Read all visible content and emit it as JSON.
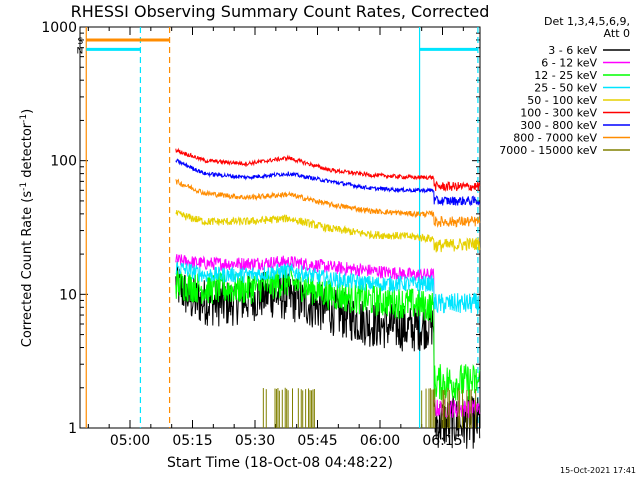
{
  "chart_data": {
    "type": "line",
    "title": "RHESSI Observing Summary Count Rates, Corrected",
    "xlabel": "Start Time (18-Oct-08 04:48:22)",
    "ylabel_main": "Corrected Count Rate (s",
    "ylabel_exp1": "-1",
    "ylabel_mid": " detector",
    "ylabel_exp2": "-1",
    "ylabel_end": ")",
    "yscale": "log",
    "ylim": [
      1,
      1000
    ],
    "xlim_minutes_after_0448": [
      0,
      96
    ],
    "y_ticks": [
      "1",
      "10",
      "100",
      "1000"
    ],
    "x_ticks": [
      {
        "label": "05:00",
        "minute": 12
      },
      {
        "label": "05:15",
        "minute": 27
      },
      {
        "label": "05:30",
        "minute": 42
      },
      {
        "label": "05:45",
        "minute": 57
      },
      {
        "label": "06:00",
        "minute": 72
      },
      {
        "label": "06:15",
        "minute": 87
      }
    ],
    "legend_header": [
      "Det 1,3,4,5,6,9,",
      "Att 0"
    ],
    "legend_placement": "top-right, outside plot",
    "timestamp": "15-Oct-2021 17:41",
    "flags": [
      {
        "label": "S",
        "color": "#ff8c00",
        "level": 800,
        "from": 1.5,
        "to": 21.5,
        "boundary": 21.5
      },
      {
        "label": "N",
        "color": "#00e5ff",
        "level": 680,
        "from": 1.5,
        "to": 14.5,
        "boundary": 14.5
      },
      {
        "label": "",
        "color": "#00e5ff",
        "level": 680,
        "from": 81.5,
        "to": 95.5,
        "boundary": 95.5
      }
    ],
    "verticals": [
      {
        "color": "#ff8c00",
        "minute": 1.5,
        "style": "solid"
      },
      {
        "color": "#00e5ff",
        "minute": 14.5,
        "style": "dashed"
      },
      {
        "color": "#ff8c00",
        "minute": 21.5,
        "style": "dashed"
      },
      {
        "color": "#00e5ff",
        "minute": 81.5,
        "style": "solid"
      },
      {
        "color": "#00e5ff",
        "minute": 95.5,
        "style": "dashed"
      }
    ],
    "series": [
      {
        "name": "3 - 6 keV",
        "color": "#000000",
        "start": 23,
        "end": 85,
        "points": [
          [
            23,
            12
          ],
          [
            27,
            9
          ],
          [
            35,
            8.5
          ],
          [
            45,
            10
          ],
          [
            50,
            9.5
          ],
          [
            60,
            7.5
          ],
          [
            70,
            6
          ],
          [
            80,
            5.5
          ],
          [
            84,
            6
          ]
        ],
        "after_points": [
          [
            85,
            1.1
          ],
          [
            96,
            1.1
          ]
        ],
        "noise": 0.18
      },
      {
        "name": "6 - 12 keV",
        "color": "#ff00ff",
        "start": 23,
        "end": 96,
        "points": [
          [
            23,
            18
          ],
          [
            30,
            17
          ],
          [
            40,
            17
          ],
          [
            50,
            17.5
          ],
          [
            60,
            16
          ],
          [
            70,
            15
          ],
          [
            80,
            14
          ],
          [
            85,
            14
          ]
        ],
        "after_points": [
          [
            85,
            1.4
          ],
          [
            96,
            1.4
          ]
        ],
        "noise": 0.05
      },
      {
        "name": "12 - 25 keV",
        "color": "#00ff00",
        "start": 23,
        "end": 96,
        "points": [
          [
            23,
            12
          ],
          [
            30,
            11
          ],
          [
            40,
            11
          ],
          [
            50,
            12.5
          ],
          [
            60,
            10
          ],
          [
            70,
            9
          ],
          [
            80,
            8.5
          ],
          [
            85,
            8
          ]
        ],
        "after_points": [
          [
            85,
            2.2
          ],
          [
            96,
            2.2
          ]
        ],
        "noise": 0.12
      },
      {
        "name": "25 - 50 keV",
        "color": "#00e5ff",
        "start": 23,
        "end": 96,
        "points": [
          [
            23,
            16
          ],
          [
            30,
            14
          ],
          [
            40,
            14
          ],
          [
            50,
            15
          ],
          [
            60,
            13
          ],
          [
            70,
            12
          ],
          [
            80,
            12
          ],
          [
            85,
            12
          ]
        ],
        "after_points": [
          [
            85,
            8.5
          ],
          [
            96,
            8.5
          ]
        ],
        "noise": 0.06
      },
      {
        "name": "50 - 100 keV",
        "color": "#e6d000",
        "start": 23,
        "end": 96,
        "points": [
          [
            23,
            40
          ],
          [
            30,
            35
          ],
          [
            40,
            35
          ],
          [
            50,
            37
          ],
          [
            60,
            31
          ],
          [
            70,
            28
          ],
          [
            80,
            27
          ],
          [
            85,
            26
          ]
        ],
        "after_points": [
          [
            85,
            23
          ],
          [
            96,
            24
          ]
        ],
        "noise": 0.03
      },
      {
        "name": "100 - 300 keV",
        "color": "#ff0000",
        "start": 23,
        "end": 96,
        "points": [
          [
            23,
            120
          ],
          [
            30,
            100
          ],
          [
            40,
            95
          ],
          [
            50,
            105
          ],
          [
            60,
            85
          ],
          [
            70,
            78
          ],
          [
            80,
            75
          ],
          [
            85,
            75
          ]
        ],
        "after_points": [
          [
            85,
            64
          ],
          [
            96,
            64
          ]
        ],
        "noise": 0.015
      },
      {
        "name": "300 - 800 keV",
        "color": "#0000ff",
        "start": 23,
        "end": 96,
        "points": [
          [
            23,
            100
          ],
          [
            30,
            80
          ],
          [
            40,
            75
          ],
          [
            50,
            80
          ],
          [
            60,
            70
          ],
          [
            70,
            62
          ],
          [
            80,
            60
          ],
          [
            85,
            60
          ]
        ],
        "after_points": [
          [
            85,
            50
          ],
          [
            96,
            50
          ]
        ],
        "noise": 0.015
      },
      {
        "name": "800 - 7000 keV",
        "color": "#ff8c00",
        "start": 23,
        "end": 96,
        "points": [
          [
            23,
            70
          ],
          [
            30,
            57
          ],
          [
            40,
            53
          ],
          [
            50,
            56
          ],
          [
            60,
            47
          ],
          [
            70,
            42
          ],
          [
            80,
            40
          ],
          [
            85,
            40
          ]
        ],
        "after_points": [
          [
            85,
            35
          ],
          [
            96,
            35
          ]
        ],
        "noise": 0.02
      },
      {
        "name": "7000 - 15000 keV",
        "color": "#808000",
        "start": 23,
        "end": 96,
        "bursts": [
          [
            44,
            58
          ],
          [
            82,
            95
          ]
        ],
        "burst_level": 1.9,
        "noise": 0.0
      }
    ]
  }
}
